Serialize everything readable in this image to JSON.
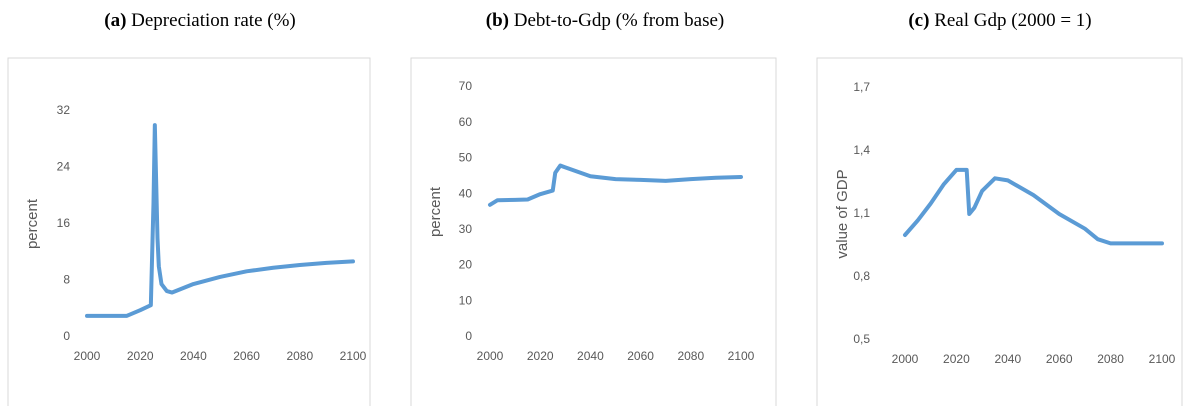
{
  "chart_data": [
    {
      "type": "line",
      "label": "(a)",
      "title": "Depreciation rate (%)",
      "ylabel": "percent",
      "xlim": [
        2000,
        2100
      ],
      "xticks": [
        2000,
        2020,
        2040,
        2060,
        2080,
        2100
      ],
      "ylim": [
        0,
        32
      ],
      "yticks": [
        0,
        8,
        16,
        24,
        32
      ],
      "x": [
        2000,
        2005,
        2010,
        2015,
        2020,
        2024,
        2025,
        2025.5,
        2026,
        2026.5,
        2027,
        2028,
        2030,
        2032,
        2040,
        2050,
        2060,
        2070,
        2080,
        2090,
        2100
      ],
      "series": [
        {
          "color": "#5b9bd5",
          "values": [
            3,
            3,
            3,
            3,
            3.8,
            4.5,
            19,
            30,
            22,
            14,
            10,
            7.5,
            6.5,
            6.3,
            7.5,
            8.5,
            9.3,
            9.8,
            10.2,
            10.5,
            10.7
          ]
        }
      ]
    },
    {
      "type": "line",
      "label": "(b)",
      "title": "Debt-to-Gdp (% from base)",
      "ylabel": "percent",
      "xlim": [
        2000,
        2100
      ],
      "xticks": [
        2000,
        2020,
        2040,
        2060,
        2080,
        2100
      ],
      "ylim": [
        0,
        70
      ],
      "yticks": [
        0,
        10,
        20,
        30,
        40,
        50,
        60,
        70
      ],
      "x": [
        2000,
        2003,
        2010,
        2015,
        2020,
        2025,
        2026,
        2028,
        2030,
        2040,
        2050,
        2060,
        2070,
        2080,
        2090,
        2100
      ],
      "series": [
        {
          "color": "#5b9bd5",
          "values": [
            37,
            38.3,
            38.4,
            38.5,
            40,
            41,
            46,
            48,
            47.5,
            45,
            44.2,
            44,
            43.7,
            44.2,
            44.6,
            44.8
          ]
        }
      ]
    },
    {
      "type": "line",
      "label": "(c)",
      "title": "Real Gdp (2000 = 1)",
      "ylabel": "value of GDP",
      "xlim": [
        2000,
        2100
      ],
      "xticks": [
        2000,
        2020,
        2040,
        2060,
        2080,
        2100
      ],
      "ylim": [
        0.5,
        1.7
      ],
      "yticks": [
        {
          "value": 0.5,
          "label": "0,5"
        },
        {
          "value": 0.8,
          "label": "0,8"
        },
        {
          "value": 1.1,
          "label": "1,1"
        },
        {
          "value": 1.4,
          "label": "1,4"
        },
        {
          "value": 1.7,
          "label": "1,7"
        }
      ],
      "x": [
        2000,
        2005,
        2010,
        2015,
        2020,
        2024,
        2025,
        2027,
        2030,
        2035,
        2040,
        2050,
        2060,
        2070,
        2075,
        2080,
        2090,
        2100
      ],
      "series": [
        {
          "color": "#5b9bd5",
          "values": [
            1.0,
            1.07,
            1.15,
            1.24,
            1.31,
            1.31,
            1.1,
            1.13,
            1.21,
            1.27,
            1.26,
            1.19,
            1.1,
            1.03,
            0.98,
            0.96,
            0.96,
            0.96
          ]
        }
      ]
    }
  ]
}
